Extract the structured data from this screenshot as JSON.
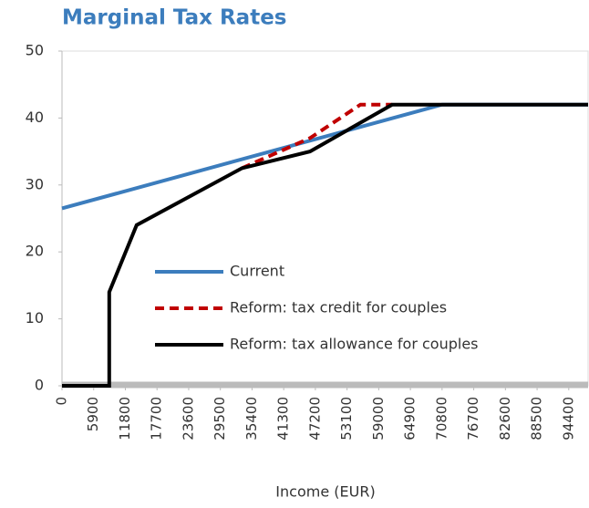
{
  "chart_data": {
    "type": "line",
    "title": "Marginal Tax Rates",
    "x_label": "Income (EUR)",
    "xlim": [
      0,
      98000
    ],
    "ylim": [
      0,
      50
    ],
    "xticks": [
      0,
      5900,
      11800,
      17700,
      23600,
      29500,
      35400,
      41300,
      47200,
      53100,
      59000,
      64900,
      70800,
      76700,
      82600,
      88500,
      94400
    ],
    "yticks": [
      0,
      10,
      20,
      30,
      40,
      50
    ],
    "series": [
      {
        "name": "Current",
        "color": "#3c7dbd",
        "dashed": false,
        "x": [
          0,
          70800,
          98000
        ],
        "values": [
          26.5,
          42,
          42
        ]
      },
      {
        "name": "Reform: tax credit for couples",
        "color": "#c00000",
        "dashed": true,
        "x": [
          33500,
          46200,
          55600,
          61500
        ],
        "values": [
          32.5,
          37,
          42,
          42
        ]
      },
      {
        "name": "Reform: tax allowance for couples",
        "color": "#000000",
        "dashed": false,
        "x": [
          0,
          8800,
          8800,
          13900,
          33500,
          46200,
          61500,
          98000
        ],
        "values": [
          0,
          0,
          14,
          24,
          32.5,
          35,
          42,
          42
        ]
      }
    ]
  }
}
